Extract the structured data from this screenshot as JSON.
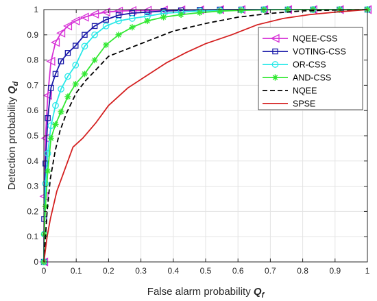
{
  "chart_data": {
    "type": "line",
    "title": "",
    "xlabel": {
      "text": "False alarm probability ",
      "symbol": "Q",
      "sub": "f"
    },
    "ylabel": {
      "text": "Detection probability ",
      "symbol": "Q",
      "sub": "d"
    },
    "xlim": [
      0,
      1
    ],
    "ylim": [
      0,
      1
    ],
    "xticks": [
      "0",
      "0.1",
      "0.2",
      "0.3",
      "0.4",
      "0.5",
      "0.6",
      "0.7",
      "0.8",
      "0.9",
      "1"
    ],
    "yticks": [
      "0",
      "0.1",
      "0.2",
      "0.3",
      "0.4",
      "0.5",
      "0.6",
      "0.7",
      "0.8",
      "0.9",
      "1"
    ],
    "grid": true,
    "legend_position": "top-right",
    "series": [
      {
        "name": "NQEE-CSS",
        "color": "#d62fd6",
        "marker": "triangle-left",
        "dash": "solid",
        "x": [
          0,
          0.001,
          0.005,
          0.012,
          0.022,
          0.036,
          0.053,
          0.074,
          0.098,
          0.126,
          0.157,
          0.192,
          0.231,
          0.273,
          0.32,
          0.37,
          0.424,
          0.482,
          0.544,
          0.61,
          0.68,
          0.754,
          0.832,
          0.914,
          1.0
        ],
        "y": [
          0,
          0.26,
          0.49,
          0.66,
          0.795,
          0.87,
          0.907,
          0.935,
          0.955,
          0.97,
          0.982,
          0.99,
          0.994,
          0.996,
          0.997,
          0.998,
          0.999,
          0.999,
          1.0,
          1.0,
          1.0,
          1.0,
          1.0,
          1.0,
          1.0
        ]
      },
      {
        "name": "VOTING-CSS",
        "color": "#1a1aa8",
        "marker": "square",
        "dash": "solid",
        "x": [
          0,
          0.001,
          0.005,
          0.012,
          0.022,
          0.036,
          0.053,
          0.074,
          0.098,
          0.126,
          0.157,
          0.192,
          0.231,
          0.273,
          0.32,
          0.37,
          0.424,
          0.482,
          0.544,
          0.61,
          0.68,
          0.754,
          0.832,
          0.914,
          1.0
        ],
        "y": [
          0,
          0.17,
          0.39,
          0.57,
          0.69,
          0.745,
          0.795,
          0.828,
          0.857,
          0.9,
          0.935,
          0.96,
          0.978,
          0.986,
          0.99,
          0.994,
          0.997,
          0.999,
          1.0,
          1.0,
          1.0,
          1.0,
          1.0,
          1.0,
          1.0
        ]
      },
      {
        "name": "OR-CSS",
        "color": "#28e8e8",
        "marker": "circle",
        "dash": "solid",
        "x": [
          0,
          0.001,
          0.005,
          0.012,
          0.022,
          0.036,
          0.053,
          0.074,
          0.098,
          0.126,
          0.157,
          0.192,
          0.231,
          0.273,
          0.32,
          0.37,
          0.424,
          0.482,
          0.544,
          0.61,
          0.68,
          0.754,
          0.832,
          0.914,
          1.0
        ],
        "y": [
          0,
          0.11,
          0.31,
          0.43,
          0.54,
          0.62,
          0.685,
          0.735,
          0.78,
          0.855,
          0.9,
          0.935,
          0.955,
          0.965,
          0.974,
          0.985,
          0.99,
          0.995,
          0.997,
          0.999,
          1.0,
          1.0,
          1.0,
          1.0,
          1.0
        ]
      },
      {
        "name": "AND-CSS",
        "color": "#33e833",
        "marker": "asterisk",
        "dash": "solid",
        "x": [
          0,
          0.001,
          0.005,
          0.012,
          0.022,
          0.036,
          0.053,
          0.074,
          0.098,
          0.126,
          0.157,
          0.192,
          0.231,
          0.273,
          0.32,
          0.37,
          0.424,
          0.482,
          0.544,
          0.61,
          0.68,
          0.754,
          0.832,
          0.914,
          1.0
        ],
        "y": [
          0,
          0.11,
          0.22,
          0.36,
          0.49,
          0.545,
          0.595,
          0.655,
          0.705,
          0.745,
          0.8,
          0.86,
          0.9,
          0.93,
          0.955,
          0.97,
          0.98,
          0.988,
          0.994,
          0.997,
          0.999,
          1.0,
          1.0,
          1.0,
          1.0
        ]
      },
      {
        "name": "NQEE",
        "color": "#000000",
        "marker": "none",
        "dash": "dashed",
        "x": [
          0,
          0.01,
          0.02,
          0.035,
          0.05,
          0.07,
          0.1,
          0.13,
          0.16,
          0.2,
          0.25,
          0.3,
          0.35,
          0.4,
          0.5,
          0.6,
          0.7,
          0.8,
          0.9,
          1.0
        ],
        "y": [
          0,
          0.2,
          0.33,
          0.44,
          0.52,
          0.59,
          0.67,
          0.72,
          0.76,
          0.815,
          0.84,
          0.865,
          0.89,
          0.915,
          0.945,
          0.97,
          0.985,
          0.995,
          0.998,
          1.0
        ]
      },
      {
        "name": "SPSE",
        "color": "#d42020",
        "marker": "none",
        "dash": "solid",
        "x": [
          0,
          0.01,
          0.02,
          0.04,
          0.06,
          0.09,
          0.12,
          0.16,
          0.2,
          0.26,
          0.32,
          0.38,
          0.44,
          0.5,
          0.58,
          0.66,
          0.74,
          0.82,
          0.9,
          1.0
        ],
        "y": [
          0,
          0.1,
          0.17,
          0.28,
          0.35,
          0.455,
          0.49,
          0.55,
          0.62,
          0.69,
          0.74,
          0.79,
          0.83,
          0.865,
          0.9,
          0.94,
          0.965,
          0.98,
          0.99,
          1.0
        ]
      }
    ]
  }
}
